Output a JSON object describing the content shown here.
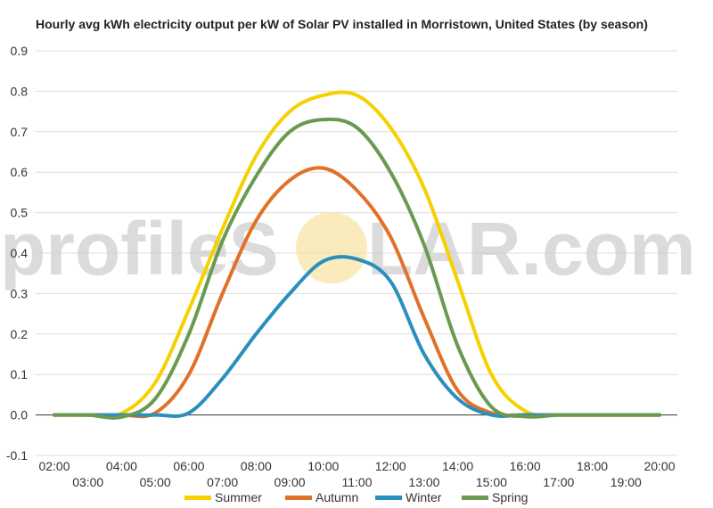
{
  "chart_data": {
    "type": "line",
    "title": "Hourly avg kWh electricity output per kW of Solar PV installed in Morristown, United States (by season)",
    "xlabel": "",
    "ylabel": "",
    "x": [
      "02:00",
      "03:00",
      "04:00",
      "05:00",
      "06:00",
      "07:00",
      "08:00",
      "09:00",
      "10:00",
      "11:00",
      "12:00",
      "13:00",
      "14:00",
      "15:00",
      "16:00",
      "17:00",
      "18:00",
      "19:00",
      "20:00"
    ],
    "ylim": [
      -0.1,
      0.9
    ],
    "yticks": [
      "-0.1",
      "0.0",
      "0.1",
      "0.2",
      "0.3",
      "0.4",
      "0.5",
      "0.6",
      "0.7",
      "0.8",
      "0.9"
    ],
    "grid": true,
    "legend_position": "bottom",
    "series": [
      {
        "name": "Summer",
        "color": "#f5d100",
        "values": [
          0,
          0,
          0.004,
          0.08,
          0.26,
          0.46,
          0.64,
          0.75,
          0.79,
          0.79,
          0.71,
          0.56,
          0.33,
          0.1,
          0.01,
          0,
          0,
          0,
          0
        ]
      },
      {
        "name": "Autumn",
        "color": "#e07128",
        "values": [
          0,
          0,
          0,
          0.005,
          0.1,
          0.3,
          0.48,
          0.58,
          0.61,
          0.555,
          0.44,
          0.24,
          0.06,
          0.005,
          0,
          0,
          0,
          0,
          0
        ]
      },
      {
        "name": "Winter",
        "color": "#2a8fbd",
        "values": [
          0,
          0,
          0,
          0,
          0.005,
          0.09,
          0.2,
          0.3,
          0.38,
          0.385,
          0.33,
          0.15,
          0.04,
          0,
          0,
          0,
          0,
          0,
          0
        ]
      },
      {
        "name": "Spring",
        "color": "#6a9a50",
        "values": [
          0,
          0,
          -0.005,
          0.04,
          0.2,
          0.43,
          0.59,
          0.7,
          0.73,
          0.71,
          0.6,
          0.42,
          0.17,
          0.02,
          -0.004,
          0,
          0,
          0,
          0
        ]
      }
    ]
  },
  "watermark": {
    "text_left": "profileS",
    "text_right": "LAR.com",
    "sun_color": "#f7e3a0"
  }
}
